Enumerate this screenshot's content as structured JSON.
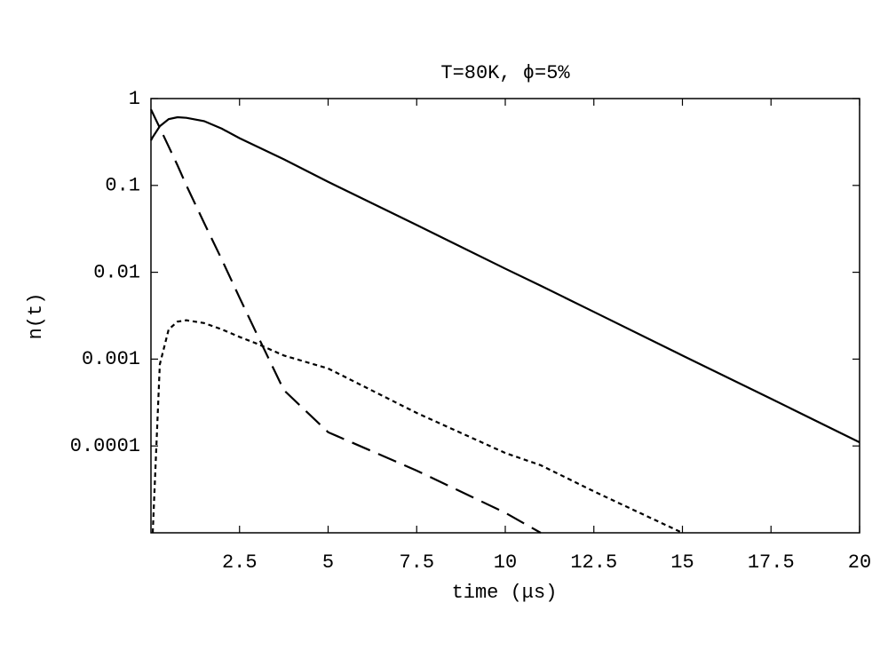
{
  "chart_data": {
    "type": "line",
    "title": "T=80K, ϕ=5%",
    "xlabel": "time (μs)",
    "ylabel": "n(t)",
    "x": [
      0,
      0.05,
      0.25,
      0.5,
      0.75,
      1,
      1.5,
      2,
      2.5,
      3,
      3.75,
      5,
      7.5,
      10,
      11,
      12.5,
      15,
      17.5,
      20
    ],
    "series": [
      {
        "color": "#000000",
        "style": "solid",
        "values": [
          0.33,
          0.36,
          0.48,
          0.58,
          0.61,
          0.6,
          0.55,
          0.45,
          0.35,
          0.28,
          0.2,
          0.11,
          0.035,
          0.011,
          0.007,
          0.0035,
          0.0011,
          0.00035,
          0.00011
        ]
      },
      {
        "color": "#000000",
        "style": "dashed",
        "values": [
          0.75,
          0.68,
          0.46,
          0.28,
          0.17,
          0.1,
          0.037,
          0.014,
          0.0051,
          0.0019,
          0.00044,
          0.000144,
          5.2e-05,
          1.7e-05,
          1e-05,
          null,
          null,
          null,
          null
        ]
      },
      {
        "color": "#000000",
        "style": "dotted",
        "values": [
          null,
          1e-05,
          0.00087,
          0.0022,
          0.0027,
          0.0028,
          0.0026,
          0.0022,
          0.0018,
          0.0015,
          0.0011,
          0.00078,
          0.00024,
          8.3e-05,
          6e-05,
          3e-05,
          1e-05,
          null,
          null
        ]
      }
    ],
    "xlim": [
      0,
      20
    ],
    "xticks": [
      2.5,
      5,
      7.5,
      10,
      12.5,
      15,
      17.5,
      20
    ],
    "ylim": [
      1e-05,
      1
    ],
    "yticks": [
      0.0001,
      0.001,
      0.01,
      0.1,
      1
    ],
    "ylog": true
  }
}
